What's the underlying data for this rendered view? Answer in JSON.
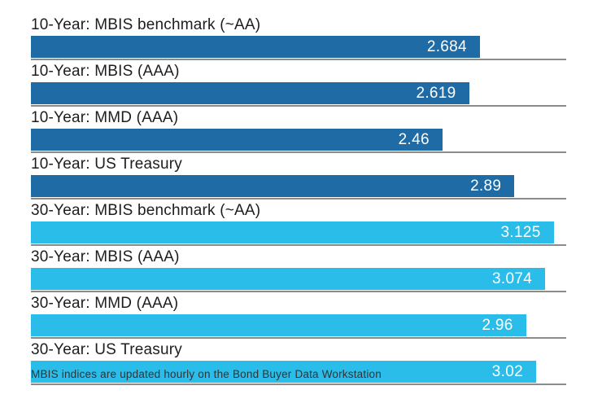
{
  "chart_data": {
    "type": "bar",
    "orientation": "horizontal",
    "title": "",
    "xlabel": "",
    "ylabel": "",
    "xlim": [
      0,
      3.2
    ],
    "grid": false,
    "legend": false,
    "value_labels_inside_bars": true,
    "categories": [
      "10-Year: MBIS benchmark (~AA)",
      "10-Year: MBIS (AAA)",
      "10-Year: MMD (AAA)",
      "10-Year: US Treasury",
      "30-Year: MBIS benchmark (~AA)",
      "30-Year: MBIS (AAA)",
      "30-Year: MMD (AAA)",
      "30-Year: US Treasury"
    ],
    "values": [
      2.684,
      2.619,
      2.46,
      2.89,
      3.125,
      3.074,
      2.96,
      3.02
    ],
    "rows": [
      {
        "label": "10-Year: MBIS benchmark (~AA)",
        "value": 2.684,
        "display": "2.684",
        "color": "#1f6ba6"
      },
      {
        "label": "10-Year: MBIS (AAA)",
        "value": 2.619,
        "display": "2.619",
        "color": "#1f6ba6"
      },
      {
        "label": "10-Year: MMD (AAA)",
        "value": 2.46,
        "display": "2.46",
        "color": "#1f6ba6"
      },
      {
        "label": "10-Year: US Treasury",
        "value": 2.89,
        "display": "2.89",
        "color": "#1f6ba6"
      },
      {
        "label": "30-Year: MBIS benchmark (~AA)",
        "value": 3.125,
        "display": "3.125",
        "color": "#2abde9"
      },
      {
        "label": "30-Year: MBIS (AAA)",
        "value": 3.074,
        "display": "3.074",
        "color": "#2abde9"
      },
      {
        "label": "30-Year: MMD (AAA)",
        "value": 2.96,
        "display": "2.96",
        "color": "#2abde9"
      },
      {
        "label": "30-Year: US Treasury",
        "value": 3.02,
        "display": "3.02",
        "color": "#2abde9"
      }
    ],
    "colors": {
      "ten_year_bar": "#1f6ba6",
      "thirty_year_bar": "#2abde9",
      "separator": "#8c8c8c",
      "label_text": "#1d1d1d",
      "value_text": "#ffffff"
    }
  },
  "footer": {
    "note": "MBIS indices are updated hourly on the Bond Buyer Data Workstation"
  }
}
